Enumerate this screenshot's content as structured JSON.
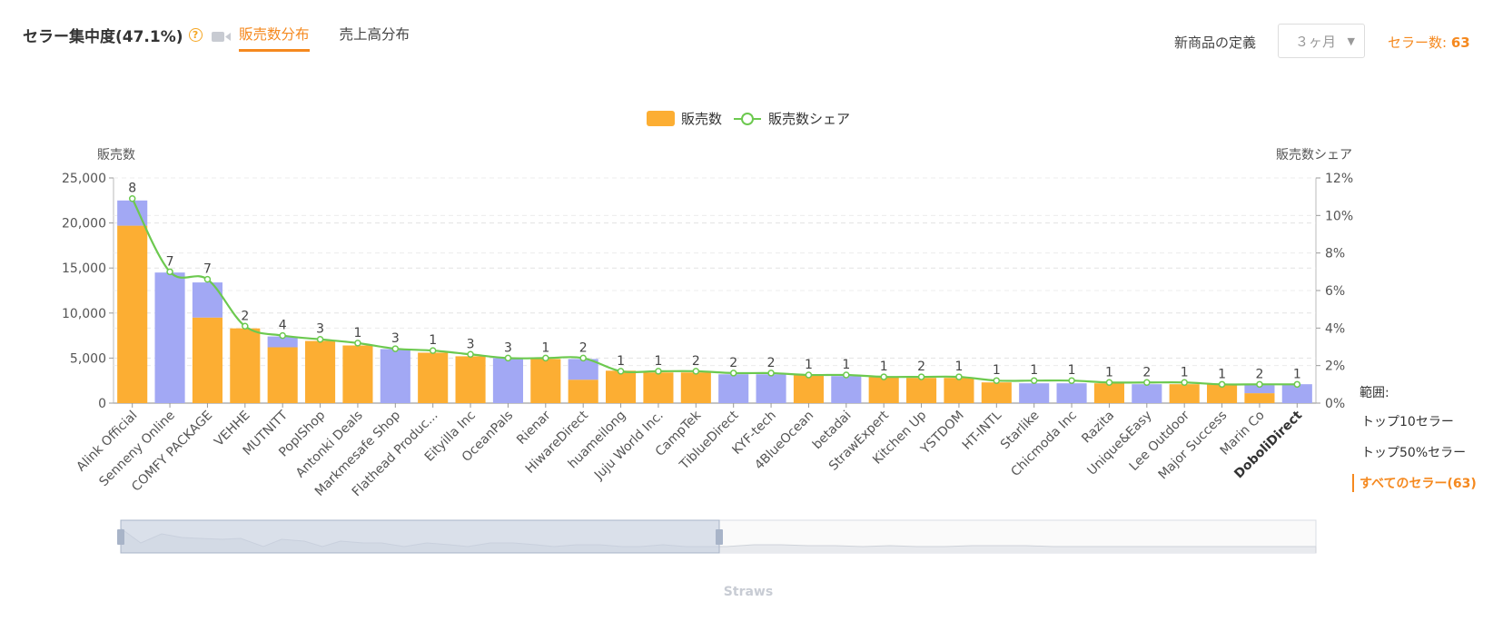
{
  "header": {
    "title": "セラー集中度(47.1%)",
    "help_icon": "question-circle-icon",
    "video_icon": "video-camera-icon",
    "tabs": [
      {
        "label": "販売数分布",
        "active": true
      },
      {
        "label": "売上高分布",
        "active": false
      }
    ],
    "new_product_label": "新商品の定義",
    "period_select": "３ヶ月",
    "seller_count_label": "セラー数:",
    "seller_count_value": "63"
  },
  "range": {
    "label": "範囲:",
    "options": [
      {
        "label": "トップ10セラー",
        "active": false
      },
      {
        "label": "トップ50%セラー",
        "active": false
      },
      {
        "label": "すべてのセラー(63)",
        "active": true
      }
    ]
  },
  "colors": {
    "orange": "#fcae33",
    "purple": "#a2a8f4",
    "line": "#6cc94f",
    "accent": "#f5891f"
  },
  "chart_data": {
    "type": "bar",
    "legend": [
      "販売数",
      "販売数シェア"
    ],
    "ylabel": "販売数",
    "y2label": "販売数シェア",
    "ylim": [
      0,
      25000
    ],
    "y2lim": [
      0,
      12
    ],
    "yticks": [
      "0",
      "5,000",
      "10,000",
      "15,000",
      "20,000",
      "25,000"
    ],
    "y2ticks": [
      "0%",
      "2%",
      "4%",
      "6%",
      "8%",
      "10%",
      "12%"
    ],
    "xlabel": "Straws",
    "categories": [
      "Alink Official",
      "Senneny Online",
      "COMFY PACKAGE",
      "VEHHE",
      "MUTNITT",
      "PopIShop",
      "Antonki Deals",
      "Markmesafe Shop",
      "Flathead Produc...",
      "Eityilla Inc",
      "OceanPals",
      "Rienar",
      "HiwareDirect",
      "huameilong",
      "Juju World Inc.",
      "CampTek",
      "TiblueDirect",
      "KYF-tech",
      "4BlueOcean",
      "betadai",
      "StrawExpert",
      "Kitchen Up",
      "YSTDOM",
      "HT-INTL",
      "Starlike",
      "Chicmoda Inc",
      "Razita",
      "Unique&Easy",
      "Lee Outdoor",
      "Major Success",
      "Marin Co",
      "DoboliDirect"
    ],
    "series": [
      {
        "name": "orange-stack",
        "values": [
          19700,
          0,
          9500,
          8300,
          6200,
          6900,
          6400,
          0,
          5600,
          5200,
          0,
          4900,
          2600,
          3600,
          3400,
          3400,
          0,
          0,
          3100,
          0,
          2900,
          2800,
          2800,
          2300,
          0,
          0,
          2200,
          0,
          2100,
          2100,
          1100,
          0
        ]
      },
      {
        "name": "purple-stack",
        "values": [
          2800,
          14500,
          3900,
          0,
          1200,
          0,
          0,
          6000,
          0,
          0,
          5000,
          0,
          2300,
          0,
          0,
          0,
          3200,
          3200,
          0,
          3000,
          0,
          0,
          0,
          0,
          2200,
          2200,
          0,
          2100,
          0,
          0,
          900,
          2100
        ]
      },
      {
        "name": "販売数シェア",
        "values": [
          10.9,
          7.0,
          6.6,
          4.1,
          3.6,
          3.4,
          3.2,
          2.9,
          2.8,
          2.6,
          2.4,
          2.4,
          2.4,
          1.7,
          1.7,
          1.7,
          1.6,
          1.6,
          1.5,
          1.5,
          1.4,
          1.4,
          1.4,
          1.2,
          1.2,
          1.2,
          1.1,
          1.1,
          1.1,
          1.0,
          1.0,
          1.0
        ]
      }
    ],
    "point_labels": [
      "8",
      "7",
      "7",
      "2",
      "4",
      "3",
      "1",
      "3",
      "1",
      "3",
      "3",
      "1",
      "2",
      "1",
      "1",
      "2",
      "2",
      "2",
      "1",
      "1",
      "1",
      "2",
      "1",
      "1",
      "1",
      "1",
      "1",
      "2",
      "1",
      "1",
      "2",
      "1"
    ]
  }
}
